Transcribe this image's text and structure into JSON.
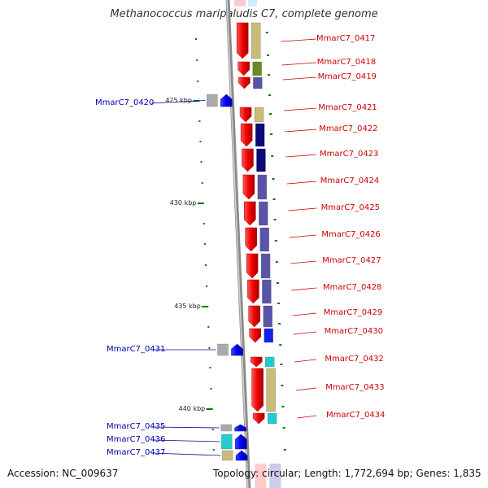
{
  "title": "Methanococcus maripaludis C7, complete genome",
  "accession": "Accession: NC_009637",
  "topology": "Topology: circular; Length: 1,772,694 bp; Genes: 1,835",
  "colors": {
    "forward_gene": "#ee1111",
    "reverse_gene": "#0000ee",
    "backbone": "#999999",
    "tick": "#007700",
    "olive": "#c8bc78",
    "green": "#6b8a22",
    "slate": "#5a54a8",
    "navy": "#0a0a7a",
    "cyan": "#22cccc",
    "grey": "#aaaaaa"
  },
  "scale_labels": [
    "425 kbp",
    "430 kbp",
    "435 kbp",
    "440 kbp"
  ],
  "forward_genes": [
    {
      "label": "MmarC7_0417",
      "cog": "olive"
    },
    {
      "label": "MmarC7_0418",
      "cog": "green"
    },
    {
      "label": "MmarC7_0419",
      "cog": "slate"
    },
    {
      "label": "MmarC7_0421",
      "cog": "olive"
    },
    {
      "label": "MmarC7_0422",
      "cog": "navy"
    },
    {
      "label": "MmarC7_0423",
      "cog": "navy"
    },
    {
      "label": "MmarC7_0424",
      "cog": "slate"
    },
    {
      "label": "MmarC7_0425",
      "cog": "slate"
    },
    {
      "label": "MmarC7_0426",
      "cog": "slate"
    },
    {
      "label": "MmarC7_0427",
      "cog": "slate"
    },
    {
      "label": "MmarC7_0428",
      "cog": "slate"
    },
    {
      "label": "MmarC7_0429",
      "cog": "slate"
    },
    {
      "label": "MmarC7_0430",
      "cog": "blue"
    },
    {
      "label": "MmarC7_0432",
      "cog": "cyan"
    },
    {
      "label": "MmarC7_0433",
      "cog": "olive"
    },
    {
      "label": "MmarC7_0434",
      "cog": "cyan"
    }
  ],
  "reverse_genes": [
    {
      "label": "MmarC7_0420",
      "cog": "grey"
    },
    {
      "label": "MmarC7_0431",
      "cog": "grey"
    },
    {
      "label": "MmarC7_0435",
      "cog": "grey"
    },
    {
      "label": "MmarC7_0436",
      "cog": "cyan"
    },
    {
      "label": "MmarC7_0437",
      "cog": "olive"
    }
  ]
}
